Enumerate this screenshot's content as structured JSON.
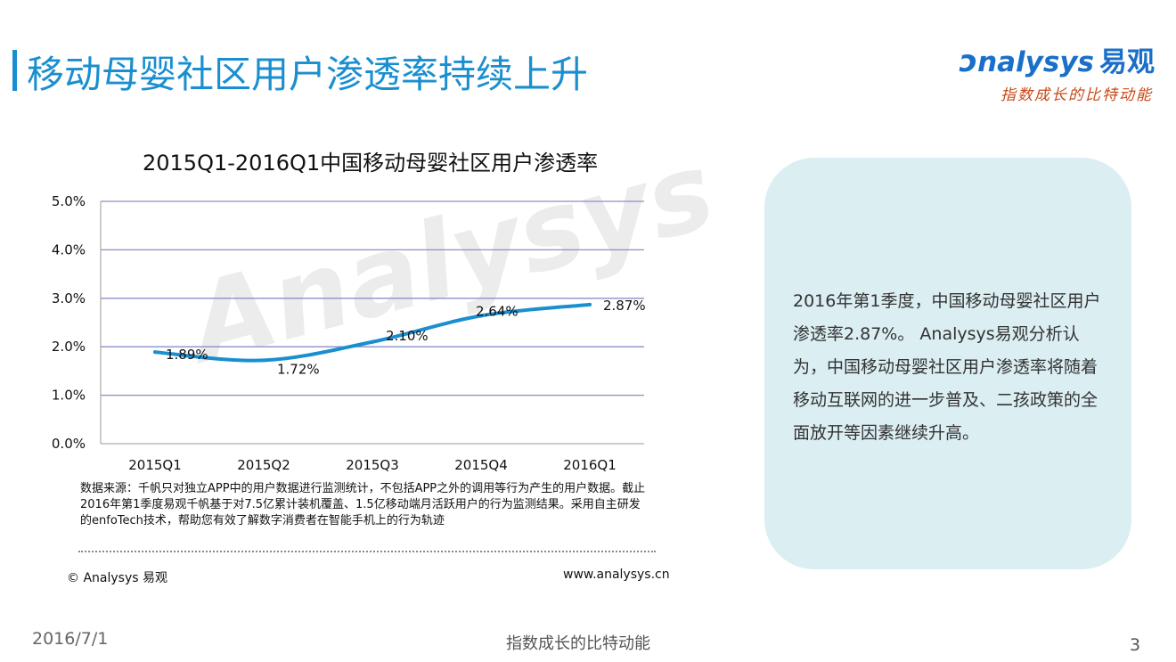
{
  "page": {
    "title": "移动母婴社区用户渗透率持续上升"
  },
  "logo": {
    "brand_latin": "nalysys",
    "brand_cn": "易观",
    "tagline": "指数成长的比特动能"
  },
  "chart_data": {
    "type": "line",
    "title": "2015Q1-2016Q1中国移动母婴社区用户渗透率",
    "categories": [
      "2015Q1",
      "2015Q2",
      "2015Q3",
      "2015Q4",
      "2016Q1"
    ],
    "series": [
      {
        "values": [
          1.89,
          1.72,
          2.1,
          2.64,
          2.87
        ],
        "labels": [
          "1.89%",
          "1.72%",
          "2.10%",
          "2.64%",
          "2.87%"
        ],
        "color": "#1a8fd0"
      }
    ],
    "y_ticks": [
      "0.0%",
      "1.0%",
      "2.0%",
      "3.0%",
      "4.0%",
      "5.0%"
    ],
    "ylim": [
      0,
      5
    ],
    "grid": true,
    "grid_color": "#8a8fc8"
  },
  "watermark": "Analysys",
  "source_note": "数据来源：千帆只对独立APP中的用户数据进行监测统计，不包括APP之外的调用等行为产生的用户数据。截止2016年第1季度易观千帆基于对7.5亿累计装机覆盖、1.5亿移动端月活跃用户的行为监测结果。采用自主研发的enfoTech技术，帮助您有效了解数字消费者在智能手机上的行为轨迹",
  "copyright": "© Analysys 易观",
  "website": "www.analysys.cn",
  "insight": "2016年第1季度，中国移动母婴社区用户渗透率2.87%。 Analysys易观分析认为，中国移动母婴社区用户渗透率将随着移动互联网的进一步普及、二孩政策的全面放开等因素继续升高。",
  "footer": {
    "date": "2016/7/1",
    "slogan": "指数成长的比特动能",
    "page_number": "3"
  },
  "colors": {
    "accent": "#1a8fd0",
    "side_box": "#dbeef2",
    "tagline": "#c84a1a"
  }
}
